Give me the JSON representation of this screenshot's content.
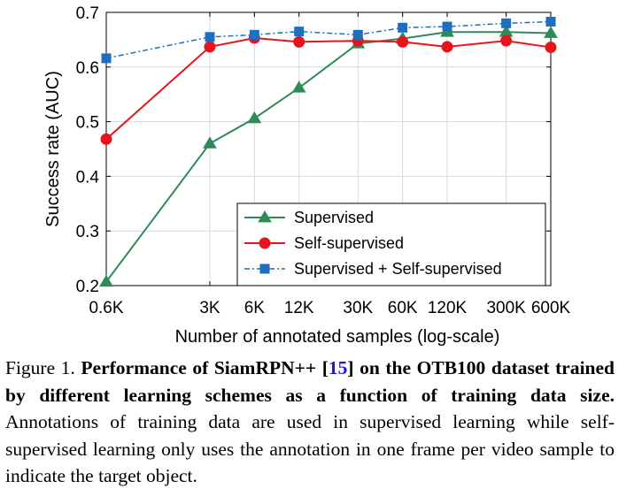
{
  "chart_data": {
    "type": "line",
    "title": "",
    "xlabel": "Number of annotated samples (log-scale)",
    "ylabel": "Success rate (AUC)",
    "x_scale": "log",
    "x": [
      600,
      3000,
      6000,
      12000,
      30000,
      60000,
      120000,
      300000,
      600000
    ],
    "x_tick_labels": [
      "0.6K",
      "3K",
      "6K",
      "12K",
      "30K",
      "60K",
      "120K",
      "300K",
      "600K"
    ],
    "xlim": [
      600,
      600000
    ],
    "ylim": [
      0.2,
      0.7
    ],
    "y_ticks": [
      0.2,
      0.3,
      0.4,
      0.5,
      0.6,
      0.7
    ],
    "grid": true,
    "legend_position": "bottom-right",
    "series": [
      {
        "name": "Supervised",
        "color": "#2e8b57",
        "marker": "triangle",
        "line_style": "solid",
        "values": [
          0.207,
          0.46,
          0.506,
          0.562,
          0.643,
          0.652,
          0.664,
          0.664,
          0.662
        ]
      },
      {
        "name": "Self-supervised",
        "color": "#e8141c",
        "marker": "circle",
        "line_style": "solid",
        "values": [
          0.468,
          0.637,
          0.653,
          0.646,
          0.648,
          0.646,
          0.637,
          0.648,
          0.636
        ]
      },
      {
        "name": "Supervised + Self-supervised",
        "color": "#1f6fbf",
        "marker": "square",
        "line_style": "dashdot",
        "values": [
          0.616,
          0.655,
          0.659,
          0.665,
          0.659,
          0.672,
          0.674,
          0.68,
          0.683
        ]
      }
    ]
  },
  "caption": {
    "label": "Figure 1.",
    "bold_text_1": "Performance of SiamRPN++ [",
    "ref": "15",
    "bold_text_2": "] on the OTB100 dataset trained by different learning schemes as a function of training data size.",
    "body": "Annotations of training data are used in supervised learning while self-supervised learning only uses the annotation in one frame per video sample to indicate the target object."
  }
}
